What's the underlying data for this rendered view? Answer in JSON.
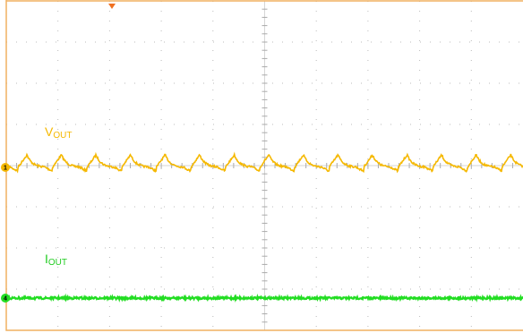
{
  "traces": [
    {
      "name": "V",
      "subscript": "OUT",
      "marker": "1",
      "color": "#f5b800"
    },
    {
      "name": "I",
      "subscript": "OUT",
      "marker": "4",
      "color": "#22dd22"
    }
  ]
}
